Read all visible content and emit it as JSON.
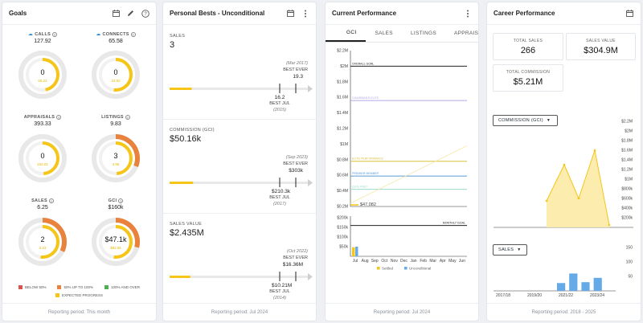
{
  "colors": {
    "yellow": "#f5c518",
    "orange": "#e8823c",
    "red": "#d9534f",
    "green": "#4caf50",
    "blue": "#64a9e8",
    "track": "#e8e8e8"
  },
  "goals": {
    "title": "Goals",
    "icons": [
      "calendar-icon",
      "pencil-icon",
      "help-icon"
    ],
    "items": [
      {
        "label": "CALLS",
        "value": "127.92",
        "center": "0",
        "expected": "60.22",
        "has_logo": true
      },
      {
        "label": "CONNECTS",
        "value": "65.58",
        "center": "0",
        "expected": "33.82",
        "has_logo": true
      },
      {
        "label": "APPRAISALS",
        "value": "393.33",
        "center": "0",
        "expected": "192.01"
      },
      {
        "label": "LISTINGS",
        "value": "9.83",
        "center": "3",
        "expected": "4.86"
      },
      {
        "label": "SALES",
        "value": "6.25",
        "center": "2",
        "expected": "3.23"
      },
      {
        "label": "GCI",
        "value": "$160k",
        "center": "$47.1k",
        "expected": "$82.5k"
      }
    ],
    "progress": [
      0,
      0,
      0,
      0.31,
      0.32,
      0.29
    ],
    "expected_progress": [
      0.47,
      0.52,
      0.49,
      0.49,
      0.52,
      0.52
    ],
    "legend": {
      "below": "BELOW 50%",
      "mid": "50% UP TO 100%",
      "over": "100% AND OVER",
      "expected": "EXPECTED PROGRESS"
    },
    "footer": "Reporting period: This month"
  },
  "personal_bests": {
    "title": "Personal Bests - Unconditional",
    "sections": [
      {
        "label": "SALES",
        "value": "3",
        "best_date": "(Mar 2017)",
        "best_ever_label": "BEST EVER",
        "best_ever": "19.3",
        "best_jul": "16.2",
        "best_jul_label": "BEST JUL",
        "best_jul_year": "(2015)",
        "progress": 0.16
      },
      {
        "label": "COMMISSION (GCI)",
        "value": "$50.16k",
        "best_date": "(Sep 2023)",
        "best_ever_label": "BEST EVER",
        "best_ever": "$303k",
        "best_jul": "$210.3k",
        "best_jul_label": "BEST JUL",
        "best_jul_year": "(2017)",
        "progress": 0.17
      },
      {
        "label": "SALES VALUE",
        "value": "$2.435M",
        "best_date": "(Oct 2022)",
        "best_ever_label": "BEST EVER",
        "best_ever": "$16.36M",
        "best_jul": "$10.21M",
        "best_jul_label": "BEST JUL",
        "best_jul_year": "(2014)",
        "progress": 0.15
      }
    ],
    "footer": "Reporting period: Jul 2024"
  },
  "current_performance": {
    "title": "Current Performance",
    "tabs": [
      "GCI",
      "SALES",
      "LISTINGS",
      "APPRAISALS"
    ],
    "active_tab": "GCI",
    "footer": "Reporting period: Jul 2024",
    "chart_data": [
      {
        "type": "line",
        "y_ticks": [
          "$2.2M",
          "$2M",
          "$1.8M",
          "$1.6M",
          "$1.4M",
          "$1.2M",
          "$1M",
          "$0.8M",
          "$0.6M",
          "$0.4M",
          "$0.2M"
        ],
        "ylim": [
          0.2,
          2.2
        ],
        "goal_lines": [
          {
            "name": "OVERALL GOAL",
            "value": 2.0,
            "color": "#222222"
          },
          {
            "name": "CHAIRMAN'S ELITE",
            "value": 1.56,
            "color": "#b3a6e6"
          },
          {
            "name": "ELITE PERFORMANCE",
            "value": 0.78,
            "color": "#d9c23a"
          },
          {
            "name": "PREMIER MEMBER",
            "value": 0.59,
            "color": "#5b9bd5"
          },
          {
            "name": "QUALIFIED",
            "value": 0.42,
            "color": "#9bdcc8"
          }
        ],
        "current_value_label": "$47,082",
        "current_value": 0.047
      },
      {
        "type": "bar",
        "categories": [
          "Jul",
          "Aug",
          "Sep",
          "Oct",
          "Nov",
          "Dec",
          "Jan",
          "Feb",
          "Mar",
          "Apr",
          "May",
          "Jun"
        ],
        "y_ticks": [
          "$200k",
          "$150k",
          "$100k",
          "$50k"
        ],
        "ylim": [
          0,
          200
        ],
        "goal_line": {
          "name": "MONTHLY GOAL",
          "value": 160
        },
        "series": [
          {
            "name": "Settled",
            "values": [
              47,
              0,
              0,
              0,
              0,
              0,
              0,
              0,
              0,
              0,
              0,
              0
            ],
            "color": "#f5c518"
          },
          {
            "name": "Unconditional",
            "values": [
              50,
              0,
              0,
              0,
              0,
              0,
              0,
              0,
              0,
              0,
              0,
              0
            ],
            "color": "#64a9e8"
          }
        ]
      }
    ]
  },
  "career": {
    "title": "Career Performance",
    "stats": [
      {
        "label": "TOTAL SALES",
        "value": "266"
      },
      {
        "label": "SALES VALUE",
        "value": "$304.9M"
      },
      {
        "label": "TOTAL COMMISSION",
        "value": "$5.21M"
      }
    ],
    "commission_dropdown": "COMMISSION (GCI)",
    "sales_dropdown": "SALES",
    "footer": "Reporting period: 2018 - 2025",
    "chart_data": [
      {
        "type": "area",
        "y_ticks": [
          "$2.2M",
          "$2M",
          "$1.8M",
          "$1.6M",
          "$1.4M",
          "$1.2M",
          "$1M",
          "$800k",
          "$600k",
          "$400k",
          "$200k"
        ],
        "ylim": [
          0,
          2.2
        ],
        "values": [
          0.55,
          1.3,
          0.6,
          1.6,
          0.05
        ]
      },
      {
        "type": "bar",
        "x_labels": [
          "2017/18",
          "2019/20",
          "2021/22",
          "2023/24"
        ],
        "y_ticks": [
          "150",
          "100",
          "50"
        ],
        "ylim": [
          0,
          150
        ],
        "values": [
          0,
          0,
          0,
          0,
          0,
          27,
          60,
          30,
          45,
          0
        ]
      }
    ]
  }
}
